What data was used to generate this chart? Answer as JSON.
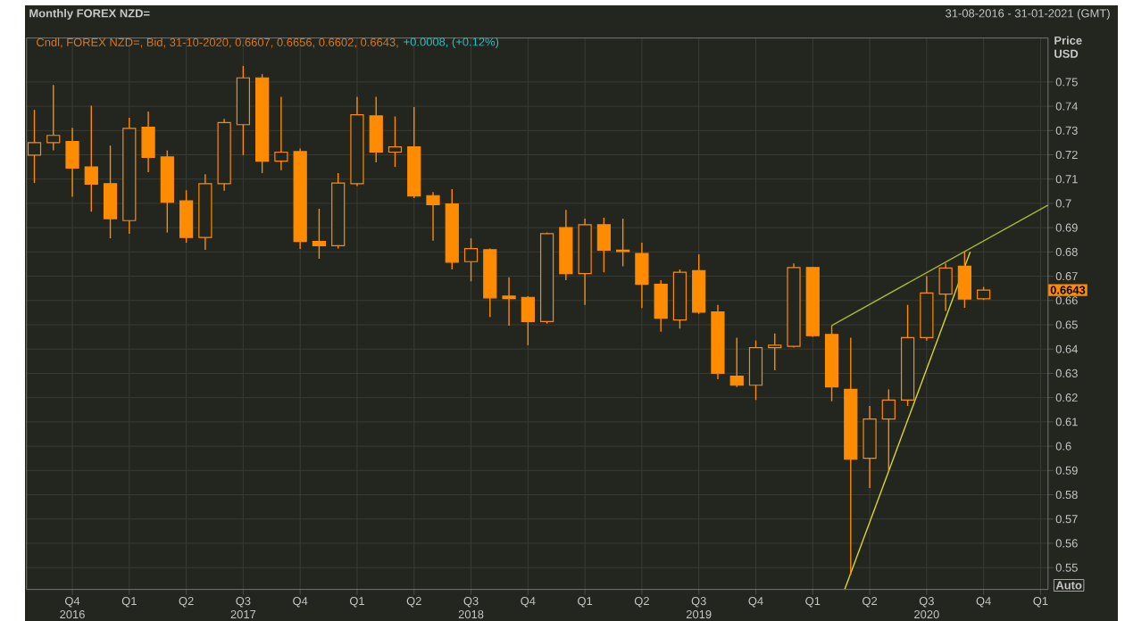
{
  "chart_data": {
    "type": "candlestick",
    "title": "Monthly FOREX NZD=",
    "subtitle": "Cndl, FOREX NZD=, Bid, 31-10-2020, 0.6607, 0.6656, 0.6602, 0.6643,",
    "ylabel": "Price USD",
    "annotations": [
      "31-08-2016 - 31-01-2021 (GMT)",
      "+0.0008, (+0.12%)",
      "Auto",
      {
        "text": "0.6643",
        "y": 0.6643
      }
    ],
    "color": "#ff8c00",
    "x": [
      "2016-08",
      "2016-09",
      "2016-10",
      "2016-11",
      "2016-12",
      "2017-01",
      "2017-02",
      "2017-03",
      "2017-04",
      "2017-05",
      "2017-06",
      "2017-07",
      "2017-08",
      "2017-09",
      "2017-10",
      "2017-11",
      "2017-12",
      "2018-01",
      "2018-02",
      "2018-03",
      "2018-04",
      "2018-05",
      "2018-06",
      "2018-07",
      "2018-08",
      "2018-09",
      "2018-10",
      "2018-11",
      "2018-12",
      "2019-01",
      "2019-02",
      "2019-03",
      "2019-04",
      "2019-05",
      "2019-06",
      "2019-07",
      "2019-08",
      "2019-09",
      "2019-10",
      "2019-11",
      "2019-12",
      "2020-01",
      "2020-02",
      "2020-03",
      "2020-04",
      "2020-05",
      "2020-06",
      "2020-07",
      "2020-08",
      "2020-09",
      "2020-10"
    ],
    "ohlc": [
      [
        0.7199,
        0.7385,
        0.7084,
        0.725
      ],
      [
        0.725,
        0.7488,
        0.7218,
        0.728
      ],
      [
        0.7255,
        0.7311,
        0.7027,
        0.7145
      ],
      [
        0.715,
        0.7402,
        0.6966,
        0.7079
      ],
      [
        0.7081,
        0.7238,
        0.6856,
        0.6937
      ],
      [
        0.6929,
        0.7353,
        0.6875,
        0.7309
      ],
      [
        0.7314,
        0.7378,
        0.7128,
        0.7189
      ],
      [
        0.7191,
        0.7218,
        0.688,
        0.7005
      ],
      [
        0.701,
        0.7054,
        0.6838,
        0.686
      ],
      [
        0.686,
        0.712,
        0.6809,
        0.7081
      ],
      [
        0.7081,
        0.7348,
        0.7052,
        0.7333
      ],
      [
        0.7324,
        0.7566,
        0.7199,
        0.7517
      ],
      [
        0.7517,
        0.7532,
        0.7125,
        0.7174
      ],
      [
        0.7174,
        0.7439,
        0.7137,
        0.7211
      ],
      [
        0.7213,
        0.7226,
        0.6812,
        0.6843
      ],
      [
        0.6843,
        0.6978,
        0.6772,
        0.6826
      ],
      [
        0.6826,
        0.7125,
        0.6814,
        0.7084
      ],
      [
        0.7081,
        0.7439,
        0.7071,
        0.7365
      ],
      [
        0.736,
        0.7439,
        0.7169,
        0.7211
      ],
      [
        0.7211,
        0.7358,
        0.715,
        0.7233
      ],
      [
        0.7233,
        0.7397,
        0.7022,
        0.703
      ],
      [
        0.7032,
        0.7047,
        0.6846,
        0.6995
      ],
      [
        0.6998,
        0.7059,
        0.6728,
        0.6758
      ],
      [
        0.676,
        0.6856,
        0.6679,
        0.6814
      ],
      [
        0.6809,
        0.6814,
        0.6532,
        0.6611
      ],
      [
        0.6618,
        0.6696,
        0.6496,
        0.6608
      ],
      [
        0.6613,
        0.6618,
        0.6416,
        0.6513
      ],
      [
        0.6513,
        0.688,
        0.6505,
        0.6875
      ],
      [
        0.69,
        0.6973,
        0.6684,
        0.6711
      ],
      [
        0.6711,
        0.6937,
        0.6582,
        0.6912
      ],
      [
        0.6912,
        0.6941,
        0.6716,
        0.6807
      ],
      [
        0.6807,
        0.6937,
        0.6741,
        0.6802
      ],
      [
        0.6794,
        0.6838,
        0.6569,
        0.6667
      ],
      [
        0.6667,
        0.6684,
        0.6472,
        0.6527
      ],
      [
        0.652,
        0.6728,
        0.6484,
        0.6716
      ],
      [
        0.6723,
        0.679,
        0.6545,
        0.6552
      ],
      [
        0.6553,
        0.6582,
        0.6276,
        0.63
      ],
      [
        0.6288,
        0.6447,
        0.6244,
        0.6251
      ],
      [
        0.6251,
        0.6435,
        0.619,
        0.6406
      ],
      [
        0.6406,
        0.6464,
        0.6313,
        0.6416
      ],
      [
        0.6411,
        0.6753,
        0.6406,
        0.6736
      ],
      [
        0.6736,
        0.6738,
        0.645,
        0.6455
      ],
      [
        0.646,
        0.6497,
        0.6185,
        0.6244
      ],
      [
        0.6234,
        0.6447,
        0.547,
        0.5946
      ],
      [
        0.595,
        0.6166,
        0.5828,
        0.6112
      ],
      [
        0.6112,
        0.6234,
        0.5897,
        0.619
      ],
      [
        0.619,
        0.6582,
        0.6166,
        0.6447
      ],
      [
        0.6447,
        0.67,
        0.6435,
        0.6631
      ],
      [
        0.6626,
        0.6753,
        0.6557,
        0.6734
      ],
      [
        0.6741,
        0.6802,
        0.657,
        0.6606
      ],
      [
        0.6607,
        0.6656,
        0.6602,
        0.6643
      ]
    ],
    "series": [
      {
        "type": "line",
        "color": "#a8b832",
        "x": [
          "2020-02",
          "2021-01-13"
        ],
        "values": [
          0.6497,
          0.6993
        ]
      },
      {
        "type": "line",
        "color": "#d8d830",
        "x": [
          "2020-02-22",
          "2020-09-10"
        ],
        "values": [
          0.5411,
          0.68
        ]
      }
    ],
    "xlim": [
      "2016-07-19",
      "2021-01-13"
    ],
    "ylim": [
      0.541,
      0.7681
    ],
    "xticks": [
      {
        "value": "2016-10",
        "label": "Q4 2016"
      },
      {
        "value": "2017-01",
        "label": "Q1"
      },
      {
        "value": "2017-04",
        "label": "Q2"
      },
      {
        "value": "2017-07",
        "label": "Q3 2017"
      },
      {
        "value": "2017-10",
        "label": "Q4"
      },
      {
        "value": "2018-01",
        "label": "Q1"
      },
      {
        "value": "2018-04",
        "label": "Q2"
      },
      {
        "value": "2018-07",
        "label": "Q3 2018"
      },
      {
        "value": "2018-10",
        "label": "Q4"
      },
      {
        "value": "2019-01",
        "label": "Q1"
      },
      {
        "value": "2019-04",
        "label": "Q2"
      },
      {
        "value": "2019-07",
        "label": "Q3 2019"
      },
      {
        "value": "2019-10",
        "label": "Q4"
      },
      {
        "value": "2020-01",
        "label": "Q1"
      },
      {
        "value": "2020-04",
        "label": "Q2"
      },
      {
        "value": "2020-07",
        "label": "Q3 2020"
      },
      {
        "value": "2020-10",
        "label": "Q4"
      },
      {
        "value": "2021-01",
        "label": "Q1"
      }
    ],
    "yticks": [
      0.55,
      0.56,
      0.57,
      0.58,
      0.59,
      0.6,
      0.61,
      0.62,
      0.63,
      0.64,
      0.65,
      0.66,
      0.67,
      0.68,
      0.69,
      0.7,
      0.71,
      0.72,
      0.73,
      0.74,
      0.75
    ],
    "grid": true
  }
}
